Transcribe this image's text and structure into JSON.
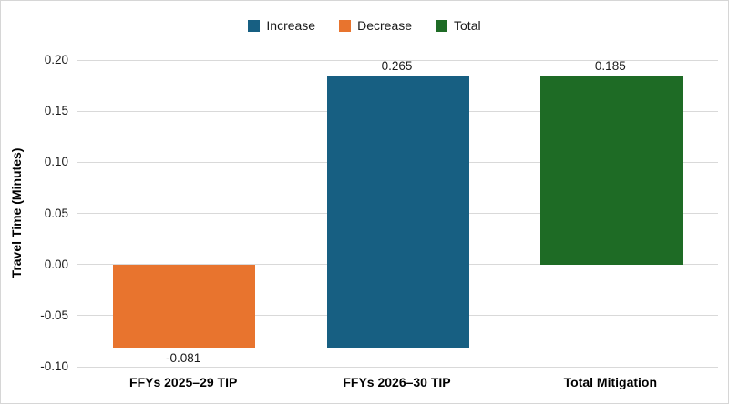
{
  "frame": {
    "background_color": "#ffffff",
    "border_color": "#d6d6d6",
    "gridline_color": "#d9d9d9"
  },
  "legend": {
    "items": [
      {
        "label": "Increase",
        "color": "#175f82"
      },
      {
        "label": "Decrease",
        "color": "#e8742e"
      },
      {
        "label": "Total",
        "color": "#1e6b25"
      }
    ]
  },
  "chart_data": {
    "type": "bar",
    "subtype": "waterfall",
    "title": "",
    "xlabel": "",
    "ylabel": "Travel Time (Minutes)",
    "ylim": [
      -0.1,
      0.2
    ],
    "ytick_step": 0.05,
    "ytick_labels": [
      "0.20",
      "0.15",
      "0.10",
      "0.05",
      "0.00",
      "-0.05",
      "-0.10"
    ],
    "grid": true,
    "legend_position": "top",
    "categories": [
      "FFYs 2025–29 TIP",
      "FFYs 2026–30 TIP",
      "Total Mitigation"
    ],
    "bars": [
      {
        "category": "FFYs 2025–29 TIP",
        "series": "Decrease",
        "from": 0,
        "to": -0.081,
        "value": -0.081,
        "label": "-0.081",
        "label_position": "below",
        "color": "#e8742e"
      },
      {
        "category": "FFYs 2026–30 TIP",
        "series": "Increase",
        "from": -0.081,
        "to": 0.185,
        "value": 0.265,
        "label": "0.265",
        "label_position": "above",
        "color": "#175f82"
      },
      {
        "category": "Total Mitigation",
        "series": "Total",
        "from": 0,
        "to": 0.185,
        "value": 0.185,
        "label": "0.185",
        "label_position": "above",
        "color": "#1e6b25"
      }
    ]
  }
}
